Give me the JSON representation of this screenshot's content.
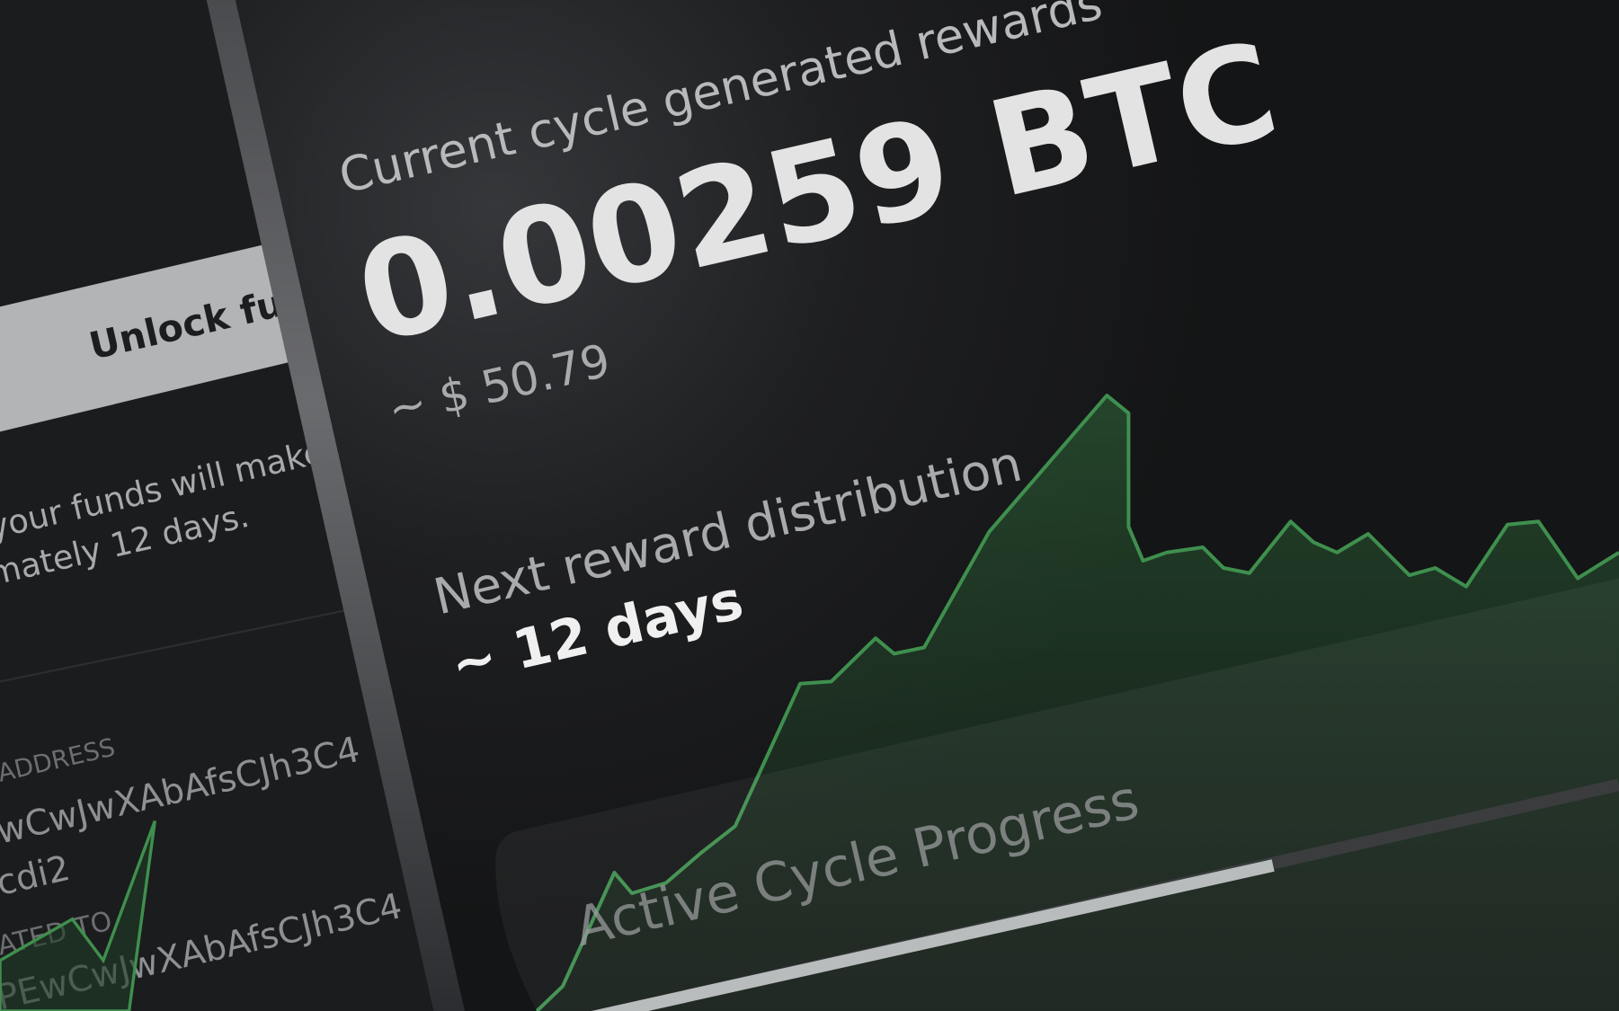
{
  "main": {
    "rewards_label": "Current cycle generated rewards",
    "rewards_value": "0.00259 BTC",
    "rewards_usd": "~ $ 50.79",
    "next_label": "Next reward distribution",
    "next_value": "~ 12 days",
    "progress_title": "Active Cycle Progress"
  },
  "side": {
    "button": "Unlock fun",
    "note_lines": [
      "your funds will make",
      "mately 12 days."
    ],
    "address_label": "ADDRESS",
    "address_lines": [
      "wCwJwXAbAfsCJh3C4",
      "cdi2"
    ],
    "delegated_label": "ATED TO",
    "delegated_value": "PEwCwJwXAbAfsCJh3C4"
  }
}
